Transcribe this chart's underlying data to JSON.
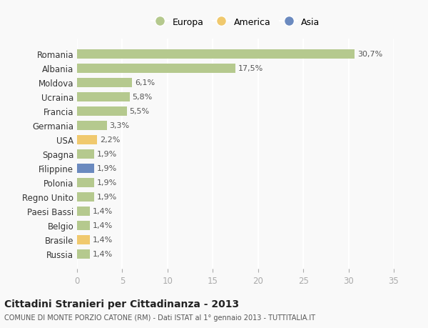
{
  "categories": [
    "Romania",
    "Albania",
    "Moldova",
    "Ucraina",
    "Francia",
    "Germania",
    "USA",
    "Spagna",
    "Filippine",
    "Polonia",
    "Regno Unito",
    "Paesi Bassi",
    "Belgio",
    "Brasile",
    "Russia"
  ],
  "values": [
    30.7,
    17.5,
    6.1,
    5.8,
    5.5,
    3.3,
    2.2,
    1.9,
    1.9,
    1.9,
    1.9,
    1.4,
    1.4,
    1.4,
    1.4
  ],
  "labels": [
    "30,7%",
    "17,5%",
    "6,1%",
    "5,8%",
    "5,5%",
    "3,3%",
    "2,2%",
    "1,9%",
    "1,9%",
    "1,9%",
    "1,9%",
    "1,4%",
    "1,4%",
    "1,4%",
    "1,4%"
  ],
  "colors": [
    "#b5c98e",
    "#b5c98e",
    "#b5c98e",
    "#b5c98e",
    "#b5c98e",
    "#b5c98e",
    "#f0c96e",
    "#b5c98e",
    "#6b8abf",
    "#b5c98e",
    "#b5c98e",
    "#b5c98e",
    "#b5c98e",
    "#f0c96e",
    "#b5c98e"
  ],
  "legend_labels": [
    "Europa",
    "America",
    "Asia"
  ],
  "legend_colors": [
    "#b5c98e",
    "#f0c96e",
    "#6b8abf"
  ],
  "title": "Cittadini Stranieri per Cittadinanza - 2013",
  "subtitle": "COMUNE DI MONTE PORZIO CATONE (RM) - Dati ISTAT al 1° gennaio 2013 - TUTTITALIA.IT",
  "xlim": [
    0,
    35
  ],
  "xticks": [
    0,
    5,
    10,
    15,
    20,
    25,
    30,
    35
  ],
  "background_color": "#f9f9f9",
  "grid_color": "#ffffff"
}
